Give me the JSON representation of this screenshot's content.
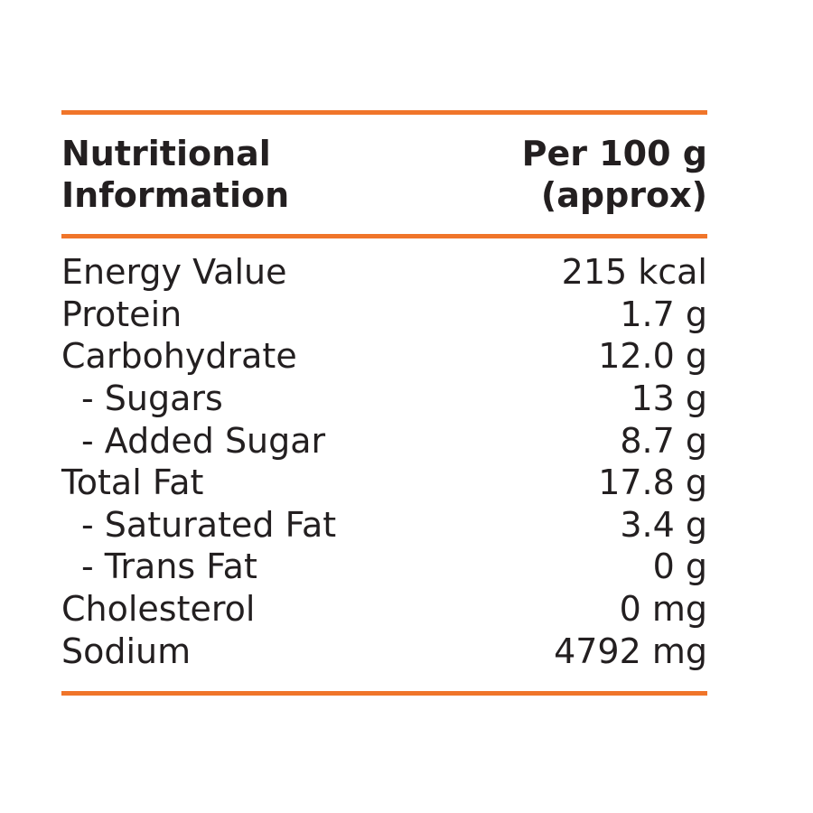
{
  "header": {
    "title_line1": "Nutritional",
    "title_line2": "Information",
    "per_line1": "Per 100 g",
    "per_line2": "(approx)"
  },
  "accent_color": "#f0752a",
  "rows": [
    {
      "label": "Energy Value",
      "value": "215 kcal"
    },
    {
      "label": "Protein",
      "value": "1.7 g"
    },
    {
      "label": "Carbohydrate",
      "value": "12.0 g"
    },
    {
      "label": "- Sugars",
      "value": "13 g",
      "sub": true
    },
    {
      "label": "- Added Sugar",
      "value": "8.7 g",
      "sub": true
    },
    {
      "label": "Total Fat",
      "value": "17.8 g"
    },
    {
      "label": "- Saturated Fat",
      "value": "3.4 g",
      "sub": true
    },
    {
      "label": "- Trans Fat",
      "value": "0 g",
      "sub": true
    },
    {
      "label": "Cholesterol",
      "value": "0 mg"
    },
    {
      "label": "Sodium",
      "value": "4792 mg"
    }
  ]
}
